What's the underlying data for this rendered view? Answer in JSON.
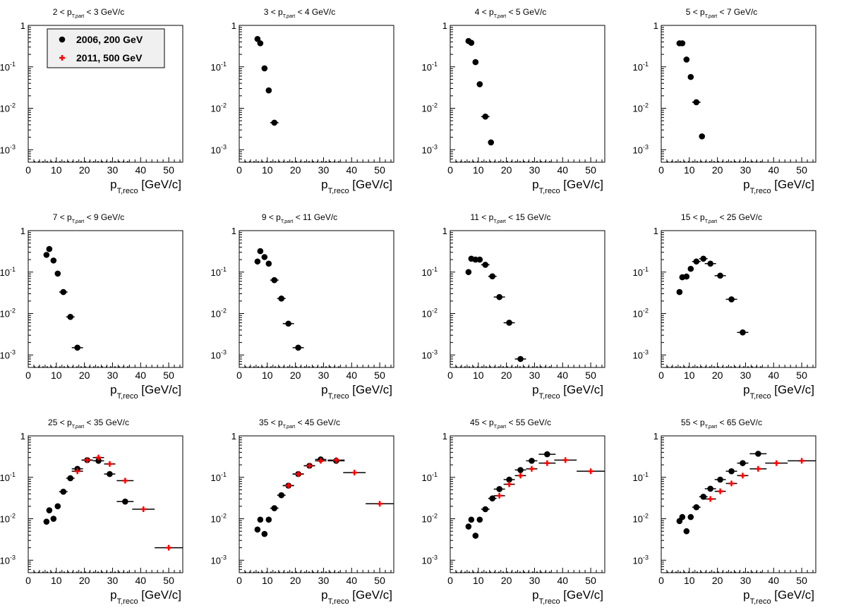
{
  "figure": {
    "legend": [
      {
        "label": "2006, 200 GeV",
        "color": "#000000",
        "marker": "circle"
      },
      {
        "label": "2011, 500 GeV",
        "color": "#ff0000",
        "marker": "cross"
      }
    ],
    "xlabel": "p_T,reco [GeV/c]",
    "xlabel_main": "p",
    "xlabel_sub": "T,reco",
    "xlabel_unit": "[GeV/c]",
    "xticks": [
      "0",
      "10",
      "20",
      "30",
      "40",
      "50"
    ],
    "yticks": [
      {
        "mant": "1",
        "exp": ""
      },
      {
        "mant": "10",
        "exp": "-1"
      },
      {
        "mant": "10",
        "exp": "-2"
      },
      {
        "mant": "10",
        "exp": "-3"
      }
    ]
  },
  "chart_data": [
    {
      "type": "scatter",
      "title": "2 < p_T,part < 3 GeV/c",
      "t_lo": "2",
      "t_hi": "3 GeV/c",
      "xlabel": "p_T,reco [GeV/c]",
      "xlim": [
        0,
        55
      ],
      "ylim": [
        0.0005,
        1
      ],
      "yscale": "log",
      "series": [
        {
          "name": "2006, 200 GeV",
          "x": [],
          "y": []
        }
      ]
    },
    {
      "type": "scatter",
      "title": "3 < p_T,part < 4 GeV/c",
      "t_lo": "3",
      "t_hi": "4 GeV/c",
      "xlabel": "p_T,reco [GeV/c]",
      "xlim": [
        0,
        55
      ],
      "ylim": [
        0.0005,
        1
      ],
      "yscale": "log",
      "series": [
        {
          "name": "2006, 200 GeV",
          "x": [
            6.5,
            7.5,
            9,
            10.5,
            12.5
          ],
          "y": [
            0.47,
            0.37,
            0.092,
            0.027,
            0.0045
          ]
        }
      ]
    },
    {
      "type": "scatter",
      "title": "4 < p_T,part < 5 GeV/c",
      "t_lo": "4",
      "t_hi": "5 GeV/c",
      "xlabel": "p_T,reco [GeV/c]",
      "xlim": [
        0,
        55
      ],
      "ylim": [
        0.0005,
        1
      ],
      "yscale": "log",
      "series": [
        {
          "name": "2006, 200 GeV",
          "x": [
            6.5,
            7.5,
            9,
            10.5,
            12.5,
            14.5
          ],
          "y": [
            0.42,
            0.38,
            0.13,
            0.038,
            0.0063,
            0.0015
          ]
        }
      ]
    },
    {
      "type": "scatter",
      "title": "5 < p_T,part < 7 GeV/c",
      "t_lo": "5",
      "t_hi": "7 GeV/c",
      "xlabel": "p_T,reco [GeV/c]",
      "xlim": [
        0,
        55
      ],
      "ylim": [
        0.0005,
        1
      ],
      "yscale": "log",
      "series": [
        {
          "name": "2006, 200 GeV",
          "x": [
            6.5,
            7.5,
            9,
            10.5,
            12.5,
            14.5
          ],
          "y": [
            0.37,
            0.37,
            0.15,
            0.057,
            0.014,
            0.0021
          ]
        }
      ]
    },
    {
      "type": "scatter",
      "title": "7 < p_T,part < 9 GeV/c",
      "t_lo": "7",
      "t_hi": "9 GeV/c",
      "xlabel": "p_T,reco [GeV/c]",
      "xlim": [
        0,
        55
      ],
      "ylim": [
        0.0005,
        1
      ],
      "yscale": "log",
      "series": [
        {
          "name": "2006, 200 GeV",
          "x": [
            6.5,
            7.5,
            9,
            10.5,
            12.5,
            15,
            17.5
          ],
          "y": [
            0.26,
            0.36,
            0.19,
            0.092,
            0.033,
            0.0083,
            0.0015
          ]
        }
      ]
    },
    {
      "type": "scatter",
      "title": "9 < p_T,part < 11 GeV/c",
      "t_lo": "9",
      "t_hi": "11 GeV/c",
      "xlabel": "p_T,reco [GeV/c]",
      "xlim": [
        0,
        55
      ],
      "ylim": [
        0.0005,
        1
      ],
      "yscale": "log",
      "series": [
        {
          "name": "2006, 200 GeV",
          "x": [
            6.5,
            7.5,
            9,
            10.5,
            12.5,
            15,
            17.5,
            21
          ],
          "y": [
            0.18,
            0.32,
            0.23,
            0.16,
            0.064,
            0.023,
            0.0057,
            0.0015
          ]
        }
      ]
    },
    {
      "type": "scatter",
      "title": "11 < p_T,part < 15 GeV/c",
      "t_lo": "11",
      "t_hi": "15 GeV/c",
      "xlabel": "p_T,reco [GeV/c]",
      "xlim": [
        0,
        55
      ],
      "ylim": [
        0.0005,
        1
      ],
      "yscale": "log",
      "series": [
        {
          "name": "2006, 200 GeV",
          "x": [
            6.5,
            7.5,
            9,
            10.5,
            12.5,
            15,
            17.5,
            21,
            25
          ],
          "y": [
            0.1,
            0.21,
            0.2,
            0.2,
            0.15,
            0.079,
            0.025,
            0.006,
            0.0008
          ]
        }
      ]
    },
    {
      "type": "scatter",
      "title": "15 < p_T,part < 25 GeV/c",
      "t_lo": "15",
      "t_hi": "25 GeV/c",
      "xlabel": "p_T,reco [GeV/c]",
      "xlim": [
        0,
        55
      ],
      "ylim": [
        0.0005,
        1
      ],
      "yscale": "log",
      "series": [
        {
          "name": "2006, 200 GeV",
          "x": [
            6.5,
            7.5,
            9,
            10.5,
            12.5,
            15,
            17.5,
            21,
            25,
            29
          ],
          "y": [
            0.033,
            0.075,
            0.078,
            0.12,
            0.18,
            0.21,
            0.16,
            0.082,
            0.022,
            0.0035
          ]
        }
      ]
    },
    {
      "type": "scatter",
      "title": "25 < p_T,part < 35 GeV/c",
      "t_lo": "25",
      "t_hi": "35 GeV/c",
      "xlabel": "p_T,reco [GeV/c]",
      "xlim": [
        0,
        55
      ],
      "ylim": [
        0.0005,
        1
      ],
      "yscale": "log",
      "series": [
        {
          "name": "2006, 200 GeV",
          "x": [
            6.5,
            7.5,
            9,
            10.5,
            12.5,
            15,
            17.5,
            21,
            25,
            29,
            34.5
          ],
          "y": [
            0.0085,
            0.016,
            0.01,
            0.02,
            0.045,
            0.095,
            0.16,
            0.26,
            0.25,
            0.12,
            0.026
          ]
        },
        {
          "name": "2011, 500 GeV",
          "x": [
            17.5,
            21,
            25,
            29,
            34.5,
            41,
            50
          ],
          "y": [
            0.14,
            0.26,
            0.3,
            0.21,
            0.083,
            0.017,
            0.002
          ]
        }
      ]
    },
    {
      "type": "scatter",
      "title": "35 < p_T,part < 45 GeV/c",
      "t_lo": "35",
      "t_hi": "45 GeV/c",
      "xlabel": "p_T,reco [GeV/c]",
      "xlim": [
        0,
        55
      ],
      "ylim": [
        0.0005,
        1
      ],
      "yscale": "log",
      "series": [
        {
          "name": "2006, 200 GeV",
          "x": [
            6.5,
            7.5,
            9,
            10.5,
            12.5,
            15,
            17.5,
            21,
            25,
            29,
            34.5
          ],
          "y": [
            0.0055,
            0.0095,
            0.0043,
            0.0095,
            0.018,
            0.037,
            0.063,
            0.12,
            0.19,
            0.27,
            0.25
          ]
        },
        {
          "name": "2011, 500 GeV",
          "x": [
            17.5,
            21,
            25,
            29,
            34.5,
            41,
            50
          ],
          "y": [
            0.063,
            0.12,
            0.19,
            0.25,
            0.26,
            0.13,
            0.023
          ]
        }
      ]
    },
    {
      "type": "scatter",
      "title": "45 < p_T,part < 55 GeV/c",
      "t_lo": "45",
      "t_hi": "55 GeV/c",
      "xlabel": "p_T,reco [GeV/c]",
      "xlim": [
        0,
        55
      ],
      "ylim": [
        0.0005,
        1
      ],
      "yscale": "log",
      "series": [
        {
          "name": "2006, 200 GeV",
          "x": [
            6.5,
            7.5,
            9,
            10.5,
            12.5,
            15,
            17.5,
            21,
            25,
            29,
            34.5
          ],
          "y": [
            0.0065,
            0.0095,
            0.0039,
            0.0095,
            0.017,
            0.031,
            0.052,
            0.088,
            0.15,
            0.25,
            0.36
          ]
        },
        {
          "name": "2011, 500 GeV",
          "x": [
            17.5,
            21,
            25,
            29,
            34.5,
            41,
            50
          ],
          "y": [
            0.036,
            0.068,
            0.11,
            0.16,
            0.22,
            0.26,
            0.14
          ]
        }
      ]
    },
    {
      "type": "scatter",
      "title": "55 < p_T,part < 65 GeV/c",
      "t_lo": "55",
      "t_hi": "65 GeV/c",
      "xlabel": "p_T,reco [GeV/c]",
      "xlim": [
        0,
        55
      ],
      "ylim": [
        0.0005,
        1
      ],
      "yscale": "log",
      "series": [
        {
          "name": "2006, 200 GeV",
          "x": [
            6.5,
            7.5,
            9,
            10.5,
            12.5,
            15,
            17.5,
            21,
            25,
            29,
            34.5
          ],
          "y": [
            0.0088,
            0.011,
            0.005,
            0.011,
            0.019,
            0.034,
            0.053,
            0.088,
            0.14,
            0.22,
            0.37
          ]
        },
        {
          "name": "2011, 500 GeV",
          "x": [
            17.5,
            21,
            25,
            29,
            34.5,
            41,
            50
          ],
          "y": [
            0.03,
            0.046,
            0.071,
            0.11,
            0.16,
            0.22,
            0.25
          ]
        }
      ]
    }
  ]
}
